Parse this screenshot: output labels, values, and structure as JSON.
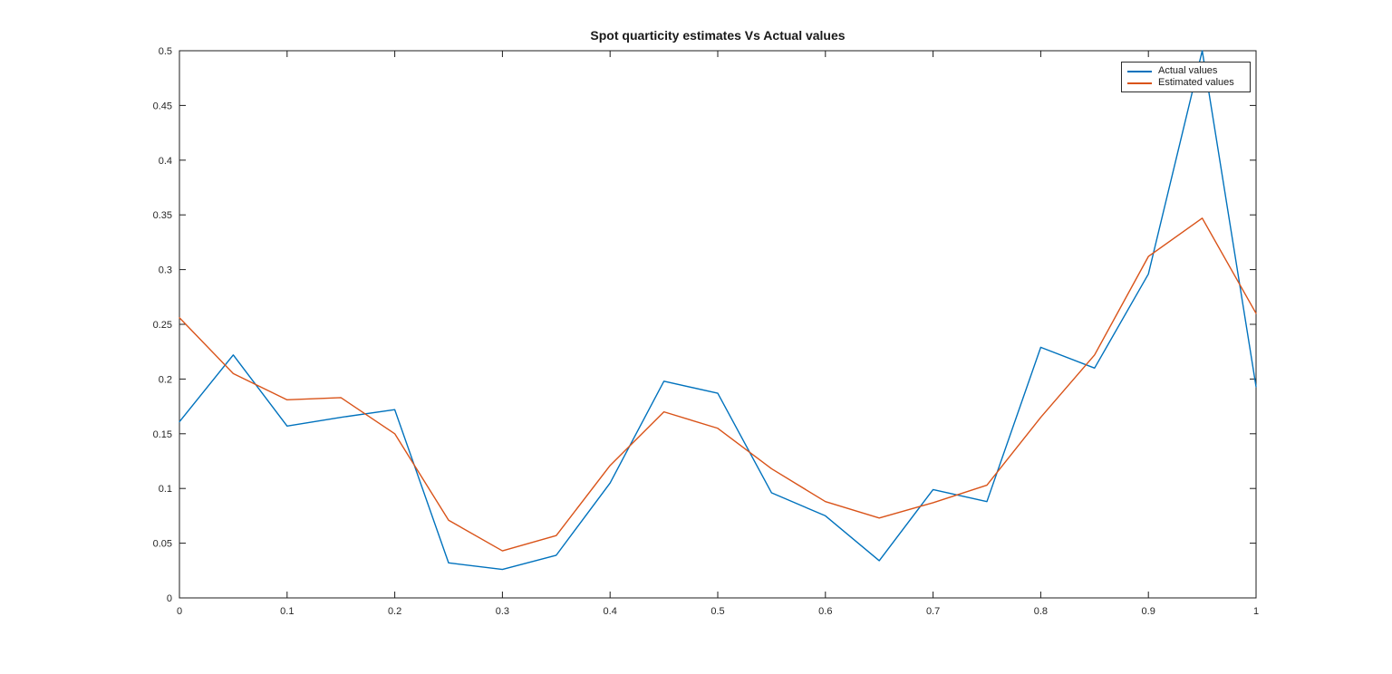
{
  "window": {
    "background": "#ffffff"
  },
  "chart_data": {
    "type": "line",
    "title": "Spot quarticity estimates Vs Actual values",
    "xlabel": "",
    "ylabel": "",
    "xlim": [
      0,
      1
    ],
    "ylim": [
      0,
      0.5
    ],
    "grid": false,
    "legend_position": "top-right",
    "axis_color": "#1c1c1c",
    "tick_label_color": "#262626",
    "title_color": "#1a1a1a",
    "x_ticks": [
      0,
      0.1,
      0.2,
      0.3,
      0.4,
      0.5,
      0.6,
      0.7,
      0.8,
      0.9,
      1
    ],
    "x_tick_labels": [
      "0",
      "0.1",
      "0.2",
      "0.3",
      "0.4",
      "0.5",
      "0.6",
      "0.7",
      "0.8",
      "0.9",
      "1"
    ],
    "y_ticks": [
      0,
      0.05,
      0.1,
      0.15,
      0.2,
      0.25,
      0.3,
      0.35,
      0.4,
      0.45,
      0.5
    ],
    "y_tick_labels": [
      "0",
      "0.05",
      "0.1",
      "0.15",
      "0.2",
      "0.25",
      "0.3",
      "0.35",
      "0.4",
      "0.45",
      "0.5"
    ],
    "x": [
      0,
      0.05,
      0.1,
      0.15,
      0.2,
      0.25,
      0.3,
      0.35,
      0.4,
      0.45,
      0.5,
      0.55,
      0.6,
      0.65,
      0.7,
      0.75,
      0.8,
      0.85,
      0.9,
      0.95,
      1
    ],
    "series": [
      {
        "name": "Actual values",
        "color": "#0072BD",
        "values": [
          0.161,
          0.222,
          0.157,
          0.165,
          0.172,
          0.032,
          0.026,
          0.039,
          0.105,
          0.198,
          0.187,
          0.096,
          0.075,
          0.034,
          0.099,
          0.088,
          0.229,
          0.21,
          0.296,
          0.5,
          0.193
        ]
      },
      {
        "name": "Estimated values",
        "color": "#D95319",
        "values": [
          0.256,
          0.205,
          0.181,
          0.183,
          0.15,
          0.071,
          0.043,
          0.057,
          0.121,
          0.17,
          0.155,
          0.118,
          0.088,
          0.073,
          0.087,
          0.103,
          0.165,
          0.222,
          0.312,
          0.347,
          0.26
        ]
      }
    ]
  }
}
